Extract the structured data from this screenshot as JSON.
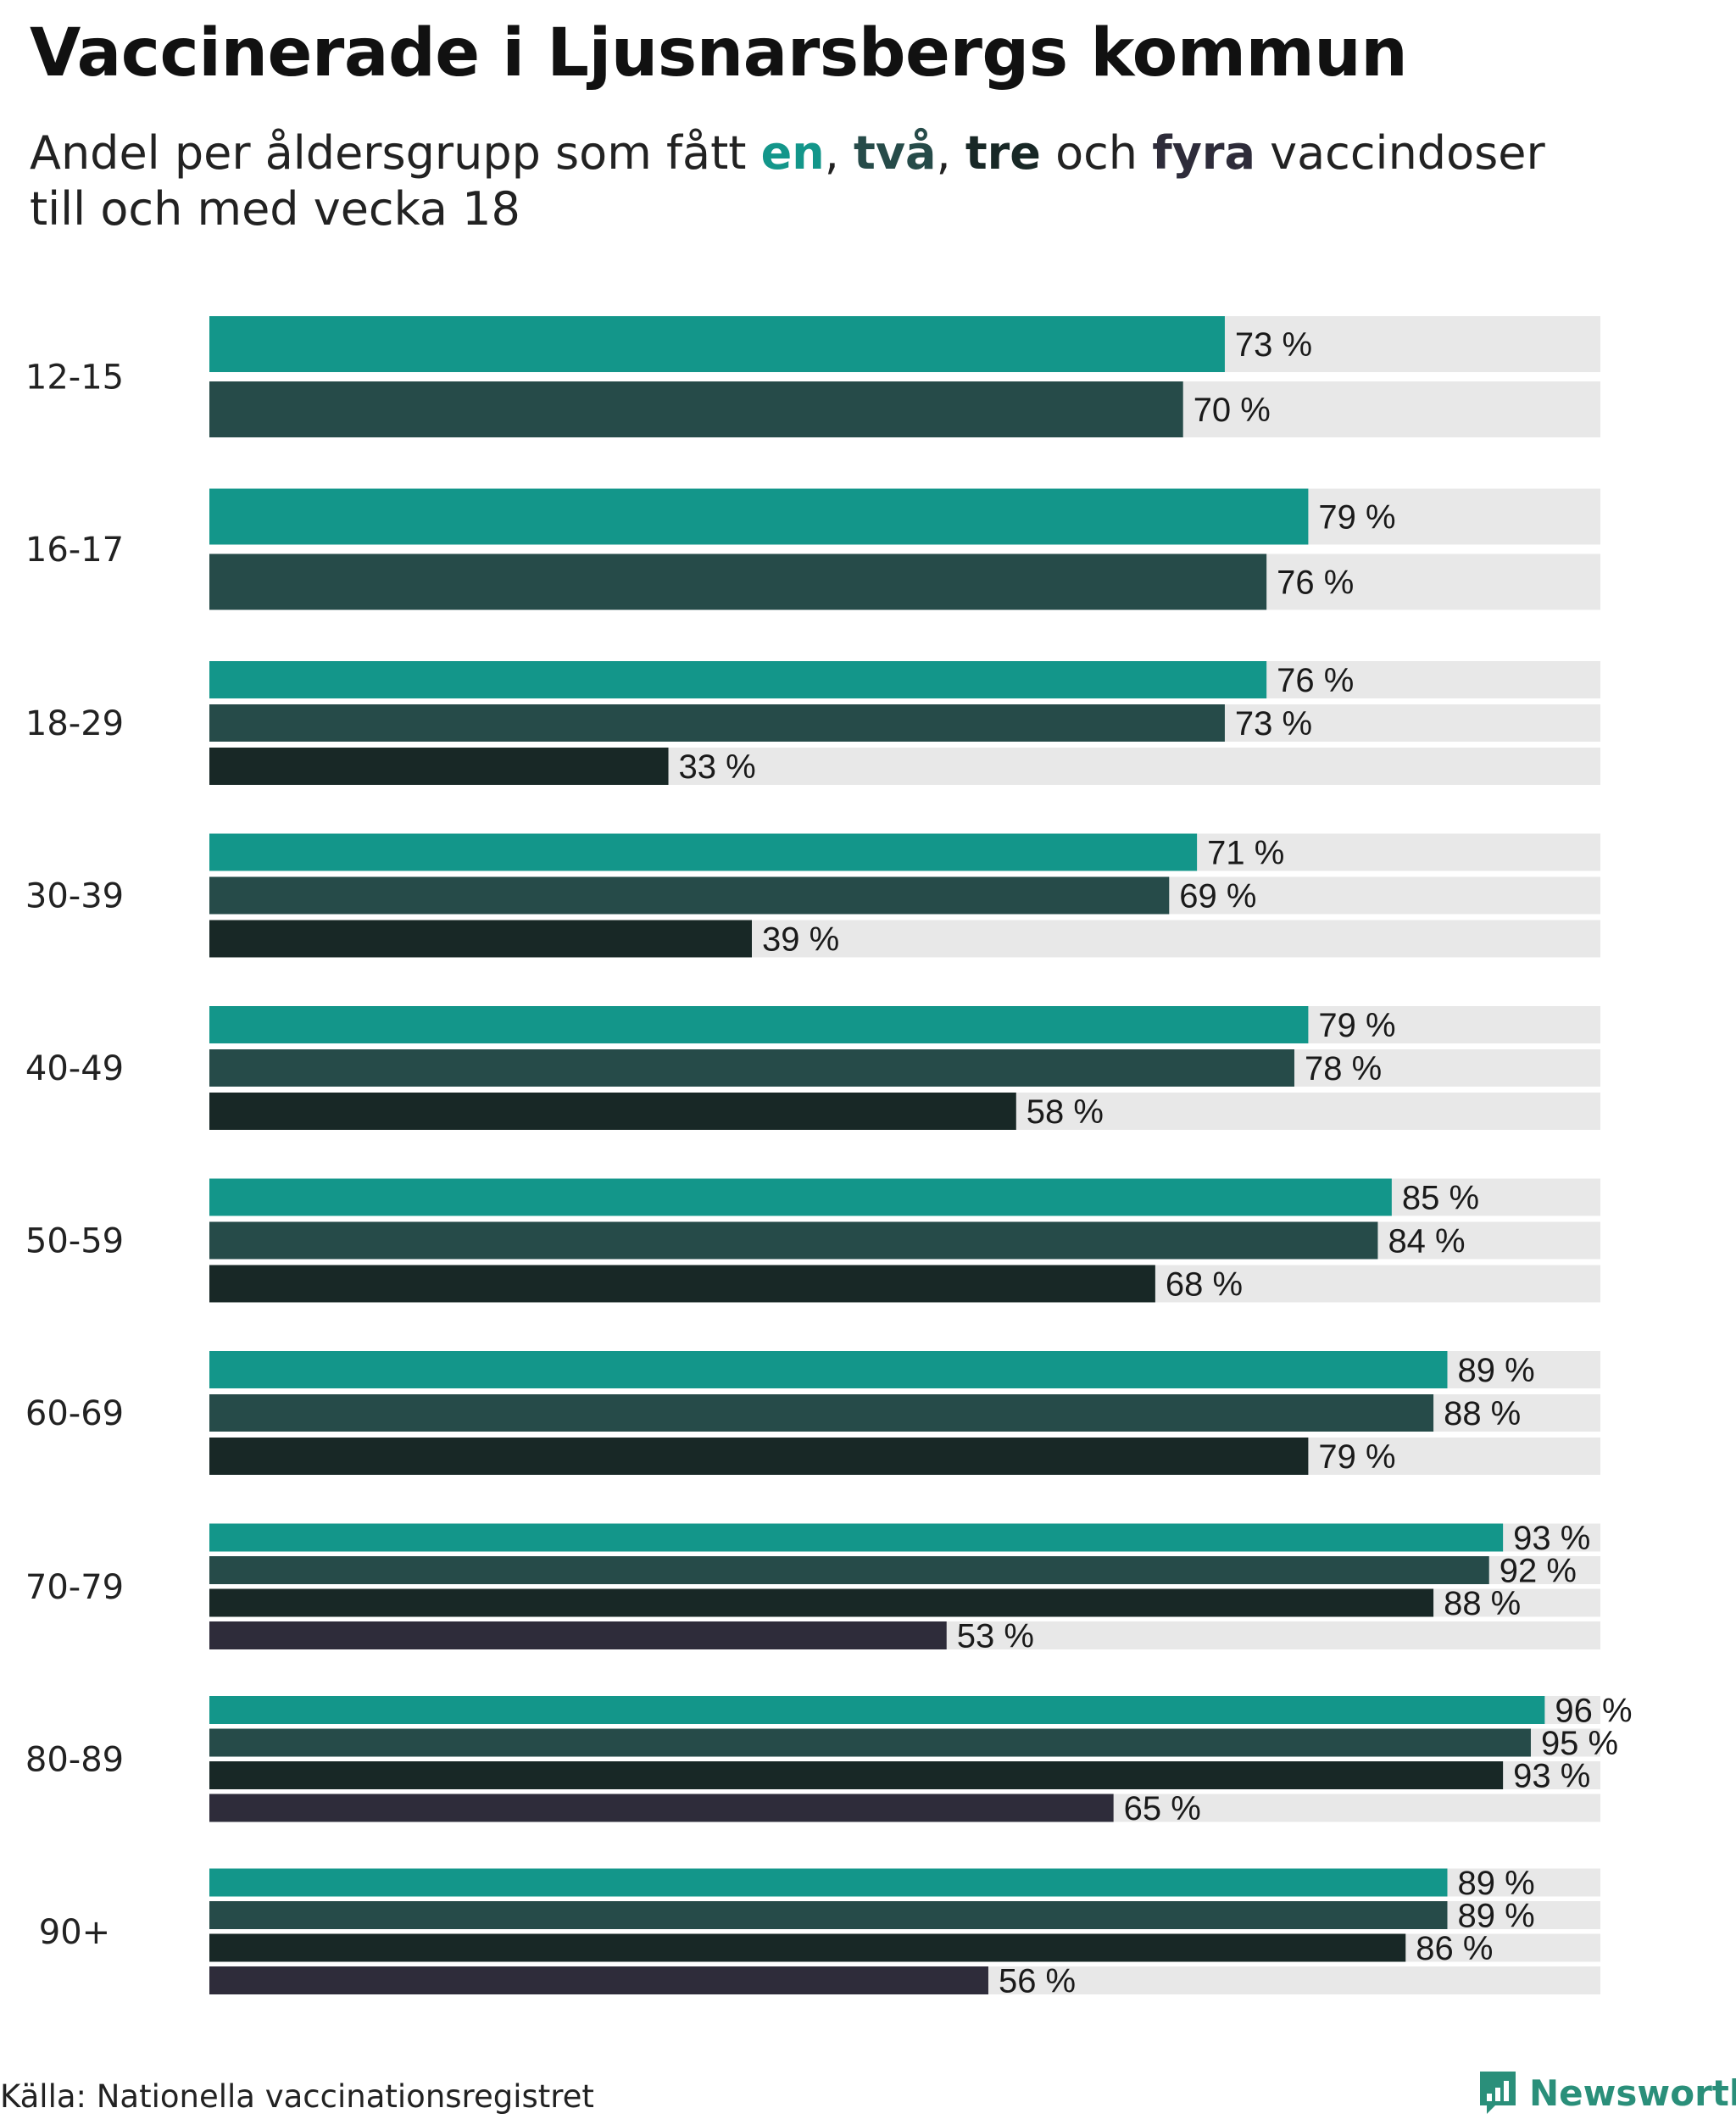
{
  "title": "Vaccinerade i Ljusnarsbergs kommun",
  "subtitle": {
    "prefix": "Andel per åldersgrupp som fått ",
    "k1": "en",
    "sep1": ", ",
    "k2": "två",
    "sep2": ", ",
    "k3": "tre",
    "sep3": " och ",
    "k4": "fyra",
    "suffix": " vaccindoser",
    "line2": "till och med vecka 18"
  },
  "colors": {
    "dose1": "#13968a",
    "dose2": "#264b49",
    "dose3": "#182826",
    "dose4": "#2e2c3a",
    "track": "#e8e8e8"
  },
  "chart_data": {
    "type": "bar",
    "orientation": "horizontal",
    "xlim": [
      0,
      100
    ],
    "unit": "%",
    "series_names": [
      "en",
      "två",
      "tre",
      "fyra"
    ],
    "categories": [
      "12-15",
      "16-17",
      "18-29",
      "30-39",
      "40-49",
      "50-59",
      "60-69",
      "70-79",
      "80-89",
      "90+"
    ],
    "groups": [
      {
        "category": "12-15",
        "values": [
          73,
          70
        ]
      },
      {
        "category": "16-17",
        "values": [
          79,
          76
        ]
      },
      {
        "category": "18-29",
        "values": [
          76,
          73,
          33
        ]
      },
      {
        "category": "30-39",
        "values": [
          71,
          69,
          39
        ]
      },
      {
        "category": "40-49",
        "values": [
          79,
          78,
          58
        ]
      },
      {
        "category": "50-59",
        "values": [
          85,
          84,
          68
        ]
      },
      {
        "category": "60-69",
        "values": [
          89,
          88,
          79
        ]
      },
      {
        "category": "70-79",
        "values": [
          93,
          92,
          88,
          53
        ]
      },
      {
        "category": "80-89",
        "values": [
          96,
          95,
          93,
          65
        ]
      },
      {
        "category": "90+",
        "values": [
          89,
          89,
          86,
          56
        ]
      }
    ]
  },
  "source": "Källa: Nationella vaccinationsregistret",
  "brand": {
    "name": "Newsworthy",
    "icon": "newsworthy-logo-icon"
  }
}
